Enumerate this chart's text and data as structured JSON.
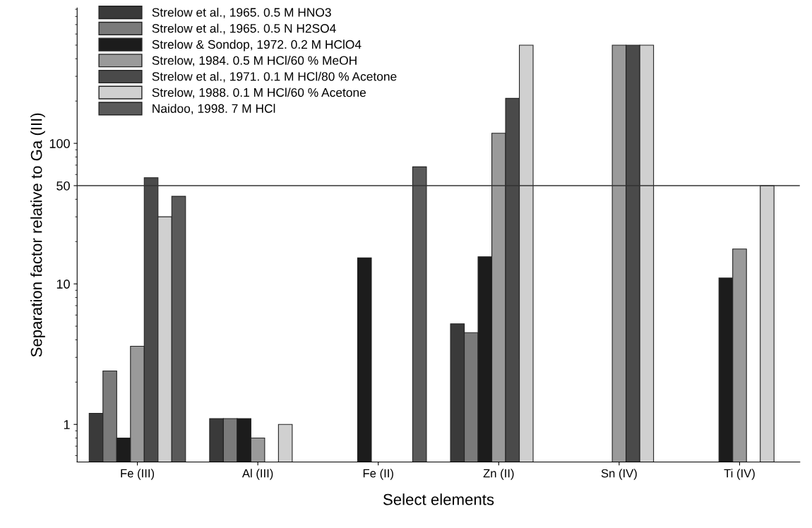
{
  "chart_data": {
    "type": "bar",
    "xlabel": "Select elements",
    "ylabel": "Separation factor relative to Ga (III)",
    "categories": [
      "Fe (III)",
      "Al (III)",
      "Fe (II)",
      "Zn (II)",
      "Sn (IV)",
      "Ti (IV)"
    ],
    "series": [
      {
        "name": "Strelow et al., 1965. 0.5 M HNO3",
        "color": "#3a3a3a",
        "values": [
          1.2,
          1.1,
          null,
          5.2,
          null,
          null
        ]
      },
      {
        "name": "Strelow et al., 1965. 0.5 N H2SO4",
        "color": "#7a7a7a",
        "values": [
          2.4,
          1.1,
          null,
          4.5,
          null,
          null
        ]
      },
      {
        "name": "Strelow & Sondop, 1972. 0.2 M HClO4",
        "color": "#1c1c1c",
        "values": [
          0.8,
          1.1,
          15.3,
          15.6,
          null,
          11
        ]
      },
      {
        "name": "Strelow, 1984. 0.5 M HCl/60 % MeOH",
        "color": "#9a9a9a",
        "values": [
          3.6,
          0.8,
          null,
          118,
          500,
          17.7
        ]
      },
      {
        "name": "Strelow et al., 1971. 0.1 M HCl/80 % Acetone",
        "color": "#4a4a4a",
        "values": [
          57,
          null,
          null,
          209,
          500,
          null
        ]
      },
      {
        "name": "Strelow, 1988. 0.1 M HCl/60 % Acetone",
        "color": "#d0d0d0",
        "values": [
          30,
          1.0,
          null,
          500,
          500,
          50
        ]
      },
      {
        "name": "Naidoo, 1998. 7 M HCl",
        "color": "#5a5a5a",
        "values": [
          42,
          null,
          68,
          null,
          null,
          null
        ]
      }
    ],
    "log": "y",
    "ylim": [
      0.54,
      920
    ],
    "yticks": [
      1,
      10,
      50,
      100
    ],
    "ref_lines": [
      {
        "axis": "y",
        "value": 50,
        "color": "#333333"
      }
    ],
    "legend": "top left",
    "grid": false
  }
}
